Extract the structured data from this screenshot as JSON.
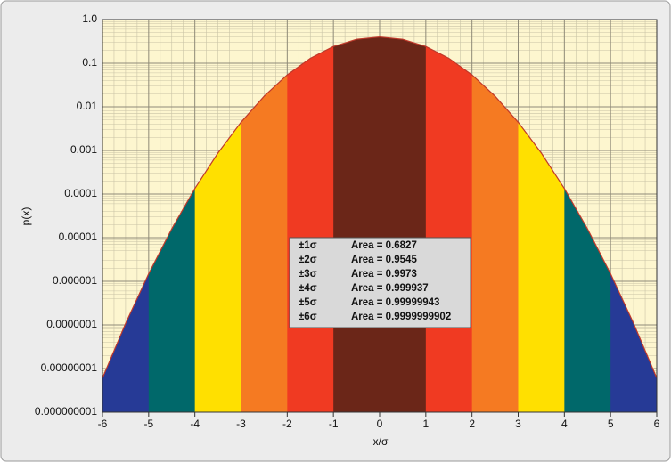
{
  "chart_data": {
    "type": "area",
    "log_y": true,
    "grid": true,
    "minor_grid": true,
    "x_label": "x/σ",
    "y_label": "p(x)",
    "x": [
      -6,
      -5.5,
      -5,
      -4.5,
      -4,
      -3.5,
      -3,
      -2.5,
      -2,
      -1.5,
      -1,
      -0.5,
      0,
      0.5,
      1,
      1.5,
      2,
      2.5,
      3,
      3.5,
      4,
      4.5,
      5,
      5.5,
      6
    ],
    "values": [
      6.076e-09,
      1.077e-07,
      1.487e-06,
      1.598e-05,
      0.0001338,
      0.0008727,
      0.004432,
      0.01753,
      0.05399,
      0.1295,
      0.242,
      0.3521,
      0.3989,
      0.3521,
      0.242,
      0.1295,
      0.05399,
      0.01753,
      0.004432,
      0.0008727,
      0.0001338,
      1.598e-05,
      1.487e-06,
      1.077e-07,
      6.076e-09
    ],
    "line_color": "#c0392b",
    "bands": [
      {
        "name": "±1σ",
        "area_label": "Area = 0.6827",
        "color": "#6b2618",
        "xrange": [
          -1,
          1
        ]
      },
      {
        "name": "±2σ",
        "area_label": "Area = 0.9545",
        "color": "#f03a22",
        "xrange": [
          -2,
          2
        ]
      },
      {
        "name": "±3σ",
        "area_label": "Area = 0.9973",
        "color": "#f57a22",
        "xrange": [
          -3,
          3
        ]
      },
      {
        "name": "±4σ",
        "area_label": "Area = 0.999937",
        "color": "#ffe000",
        "xrange": [
          -4,
          4
        ]
      },
      {
        "name": "±5σ",
        "area_label": "Area = 0.99999943",
        "color": "#00686a",
        "xrange": [
          -5,
          5
        ]
      },
      {
        "name": "±6σ",
        "area_label": "Area = 0.9999999902",
        "color": "#263a96",
        "xrange": [
          -6,
          6
        ]
      }
    ],
    "xlim": [
      -6,
      6
    ],
    "xticks": [
      -6,
      -5,
      -4,
      -3,
      -2,
      -1,
      0,
      1,
      2,
      3,
      4,
      5,
      6
    ],
    "ylim": [
      1e-09,
      1
    ],
    "yticks": [
      {
        "value": 1e-09,
        "label": "0.000000001"
      },
      {
        "value": 1e-08,
        "label": "0.00000001"
      },
      {
        "value": 1e-07,
        "label": "0.0000001"
      },
      {
        "value": 1e-06,
        "label": "0.000001"
      },
      {
        "value": 1e-05,
        "label": "0.00001"
      },
      {
        "value": 0.0001,
        "label": "0.0001"
      },
      {
        "value": 0.001,
        "label": "0.001"
      },
      {
        "value": 0.01,
        "label": "0.01"
      },
      {
        "value": 0.1,
        "label": "0.1"
      },
      {
        "value": 1,
        "label": "1.0"
      }
    ]
  }
}
